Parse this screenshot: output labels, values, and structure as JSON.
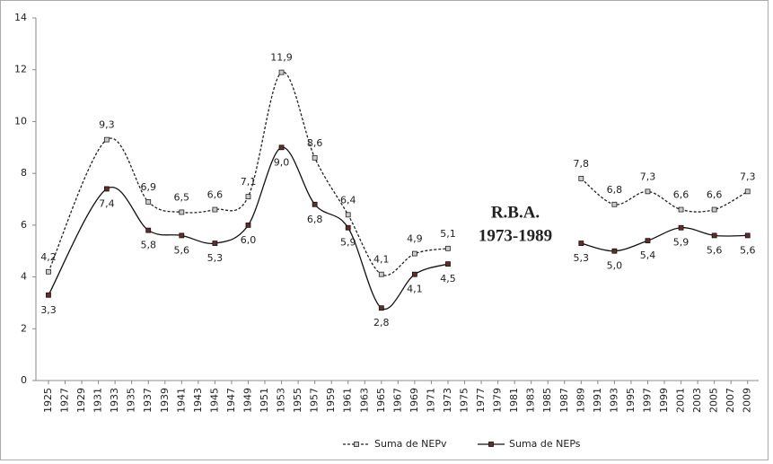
{
  "chart_data": {
    "type": "line",
    "annotation": [
      "R.B.A.",
      "1973-1989"
    ],
    "xlim": [
      1924,
      2010
    ],
    "xticks": [
      1925,
      1927,
      1929,
      1931,
      1933,
      1935,
      1937,
      1939,
      1941,
      1943,
      1945,
      1947,
      1949,
      1951,
      1953,
      1955,
      1957,
      1959,
      1961,
      1963,
      1965,
      1967,
      1969,
      1971,
      1973,
      1975,
      1977,
      1979,
      1981,
      1983,
      1985,
      1987,
      1989,
      1991,
      1993,
      1995,
      1997,
      1999,
      2001,
      2003,
      2005,
      2007,
      2009
    ],
    "ylim": [
      0,
      14
    ],
    "yticks": [
      0,
      2,
      4,
      6,
      8,
      10,
      12,
      14
    ],
    "x": [
      1925,
      1932,
      1937,
      1941,
      1945,
      1949,
      1953,
      1957,
      1961,
      1965,
      1969,
      1973,
      1981,
      1989,
      1993,
      1997,
      2001,
      2005,
      2009
    ],
    "series": [
      {
        "name": "Suma de NEPv",
        "color": "#222222",
        "dash": true,
        "values": [
          4.2,
          9.3,
          6.9,
          6.5,
          6.6,
          7.1,
          11.9,
          8.6,
          6.4,
          4.1,
          4.9,
          5.1,
          null,
          7.8,
          6.8,
          7.3,
          6.6,
          6.6,
          7.3
        ],
        "value_labels": [
          "4,2",
          "9,3",
          "6,9",
          "6,5",
          "6,6",
          "7,1",
          "11,9",
          "8,6",
          "6,4",
          "4,1",
          "4,9",
          "5,1",
          null,
          "7,8",
          "6,8",
          "7,3",
          "6,6",
          "6,6",
          "7,3"
        ]
      },
      {
        "name": "Suma de NEPs",
        "color": "#111111",
        "dash": false,
        "values": [
          3.3,
          7.4,
          5.8,
          5.6,
          5.3,
          6.0,
          9.0,
          6.8,
          5.9,
          2.8,
          4.1,
          4.5,
          null,
          5.3,
          5.0,
          5.4,
          5.9,
          5.6,
          5.6
        ],
        "value_labels": [
          "3,3",
          "7,4",
          "5,8",
          "5,6",
          "5,3",
          "6,0",
          "9,0",
          "6,8",
          "5,9",
          "2,8",
          "4,1",
          "4,5",
          null,
          "5,3",
          "5,0",
          "5,4",
          "5,9",
          "5,6",
          "5,6"
        ]
      }
    ]
  }
}
